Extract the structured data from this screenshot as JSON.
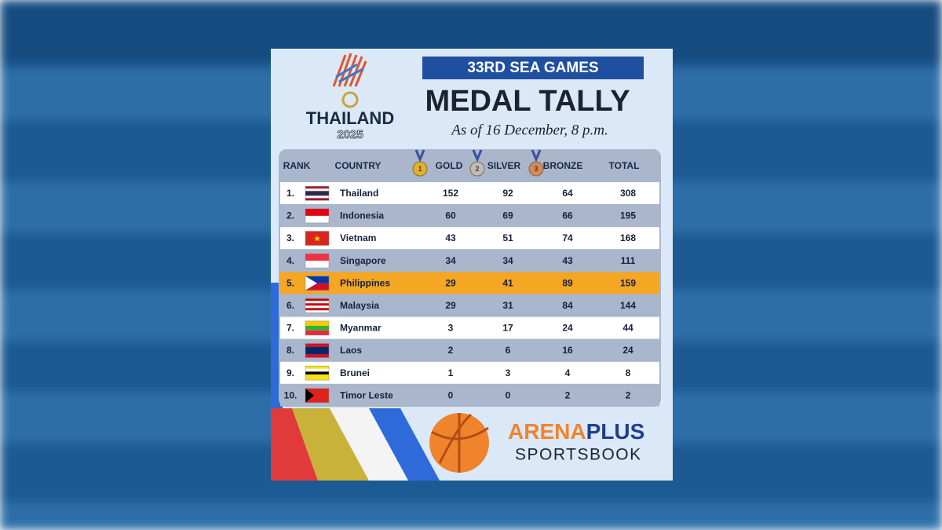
{
  "header": {
    "logo_name": "THAILAND",
    "logo_year": "2025",
    "banner": "33RD SEA GAMES",
    "title": "MEDAL TALLY",
    "subtitle": "As of 16 December, 8 p.m."
  },
  "table": {
    "columns": [
      "RANK",
      "COUNTRY",
      "GOLD",
      "SILVER",
      "BRONZE",
      "TOTAL"
    ],
    "medals": [
      "1",
      "2",
      "3"
    ],
    "rows": [
      [
        "1.",
        "Thailand",
        152,
        92,
        64,
        308
      ],
      [
        "2.",
        "Indonesia",
        60,
        69,
        66,
        195
      ],
      [
        "3.",
        "Vietnam",
        43,
        51,
        74,
        168
      ],
      [
        "4.",
        "Singapore",
        34,
        34,
        43,
        111
      ],
      [
        "5.",
        "Philippines",
        29,
        41,
        89,
        159
      ],
      [
        "6.",
        "Malaysia",
        29,
        31,
        84,
        144
      ],
      [
        "7.",
        "Myanmar",
        3,
        17,
        24,
        44
      ],
      [
        "8.",
        "Laos",
        2,
        6,
        16,
        24
      ],
      [
        "9.",
        "Brunei",
        1,
        3,
        4,
        8
      ],
      [
        "10.",
        "Timor Leste",
        0,
        0,
        2,
        2
      ]
    ]
  },
  "sponsor": {
    "name_part1": "ARENA",
    "name_part2": "PLUS",
    "tagline": "SPORTSBOOK"
  }
}
